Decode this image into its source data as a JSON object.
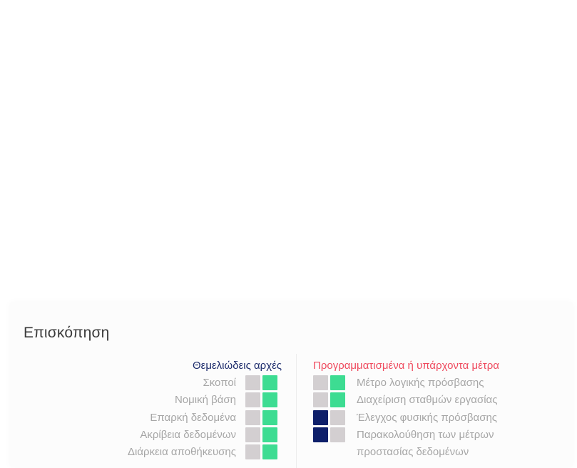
{
  "panel": {
    "title": "Επισκόπηση"
  },
  "principles": {
    "header": "Θεμελιώδεις αρχές",
    "rows": [
      {
        "label": "Σκοποί",
        "states": [
          "gray",
          "green"
        ]
      },
      {
        "label": "Νομική βάση",
        "states": [
          "gray",
          "green"
        ]
      },
      {
        "label": "Επαρκή δεδομένα",
        "states": [
          "gray",
          "green"
        ]
      },
      {
        "label": "Ακρίβεια δεδομένων",
        "states": [
          "gray",
          "green"
        ]
      },
      {
        "label": "Διάρκεια αποθήκευσης",
        "states": [
          "gray",
          "green"
        ]
      }
    ]
  },
  "measures": {
    "header": "Προγραμματισμένα ή υπάρχοντα μέτρα",
    "rows": [
      {
        "label": "Μέτρο λογικής πρόσβασης",
        "states": [
          "gray",
          "green"
        ]
      },
      {
        "label": "Διαχείριση σταθμών εργασίας",
        "states": [
          "gray",
          "green"
        ]
      },
      {
        "label": "Έλεγχος φυσικής πρόσβασης",
        "states": [
          "navy",
          "gray"
        ]
      },
      {
        "label": "Παρακολούθηση των μέτρων",
        "states": [
          "navy",
          "gray"
        ]
      },
      {
        "label": "προστασίας δεδομένων",
        "states": []
      }
    ]
  },
  "colors": {
    "green": "#3ddc92",
    "gray": "#d3cfd1",
    "navy": "#0e1f6a",
    "measures_header": "#ef4a5e",
    "principles_header": "#1b2a6b"
  }
}
